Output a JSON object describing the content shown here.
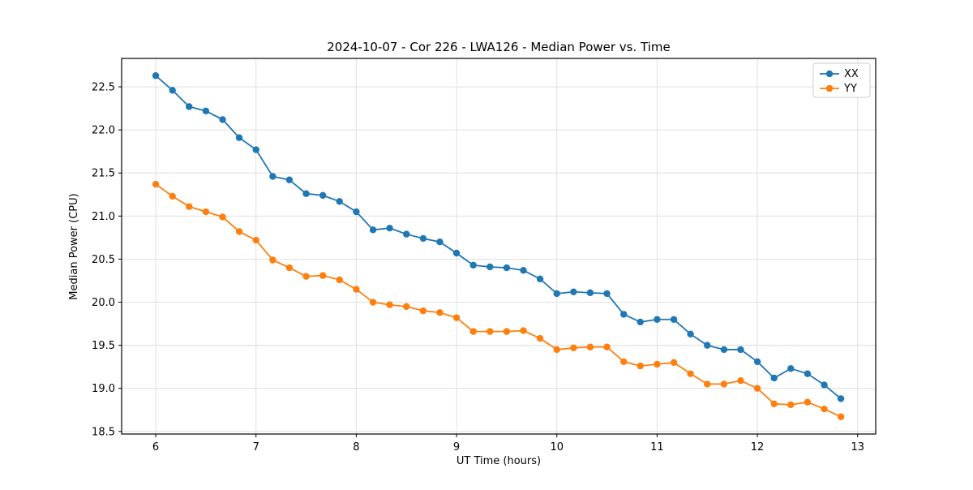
{
  "chart_data": {
    "type": "line",
    "title": "2024-10-07 - Cor 226 - LWA126 - Median Power vs. Time",
    "xlabel": "UT Time (hours)",
    "ylabel": "Median Power (CPU)",
    "xlim": [
      5.66,
      13.18
    ],
    "ylim": [
      18.47,
      22.83
    ],
    "xticks": [
      6,
      7,
      8,
      9,
      10,
      11,
      12,
      13
    ],
    "yticks": [
      18.5,
      19.0,
      19.5,
      20.0,
      20.5,
      21.0,
      21.5,
      22.0,
      22.5
    ],
    "grid": true,
    "legend_position": "upper right",
    "x": [
      6.0,
      6.167,
      6.333,
      6.5,
      6.667,
      6.833,
      7.0,
      7.167,
      7.333,
      7.5,
      7.667,
      7.833,
      8.0,
      8.167,
      8.333,
      8.5,
      8.667,
      8.833,
      9.0,
      9.167,
      9.333,
      9.5,
      9.667,
      9.833,
      10.0,
      10.167,
      10.333,
      10.5,
      10.667,
      10.833,
      11.0,
      11.167,
      11.333,
      11.5,
      11.667,
      11.833,
      12.0,
      12.167,
      12.333,
      12.5,
      12.667,
      12.833
    ],
    "series": [
      {
        "name": "XX",
        "color": "#1f77b4",
        "values": [
          22.63,
          22.46,
          22.27,
          22.22,
          22.12,
          21.91,
          21.77,
          21.46,
          21.42,
          21.26,
          21.24,
          21.17,
          21.05,
          20.84,
          20.86,
          20.79,
          20.74,
          20.7,
          20.57,
          20.43,
          20.41,
          20.4,
          20.37,
          20.27,
          20.1,
          20.12,
          20.11,
          20.1,
          19.86,
          19.77,
          19.8,
          19.8,
          19.63,
          19.5,
          19.45,
          19.45,
          19.31,
          19.12,
          19.23,
          19.17,
          19.04,
          18.88
        ]
      },
      {
        "name": "YY",
        "color": "#ff7f0e",
        "values": [
          21.37,
          21.23,
          21.11,
          21.05,
          20.99,
          20.82,
          20.72,
          20.49,
          20.4,
          20.3,
          20.31,
          20.26,
          20.15,
          20.0,
          19.97,
          19.95,
          19.9,
          19.88,
          19.82,
          19.66,
          19.66,
          19.66,
          19.67,
          19.58,
          19.45,
          19.47,
          19.48,
          19.48,
          19.31,
          19.26,
          19.28,
          19.3,
          19.17,
          19.05,
          19.05,
          19.09,
          19.0,
          18.82,
          18.81,
          18.84,
          18.76,
          18.67
        ]
      }
    ]
  }
}
